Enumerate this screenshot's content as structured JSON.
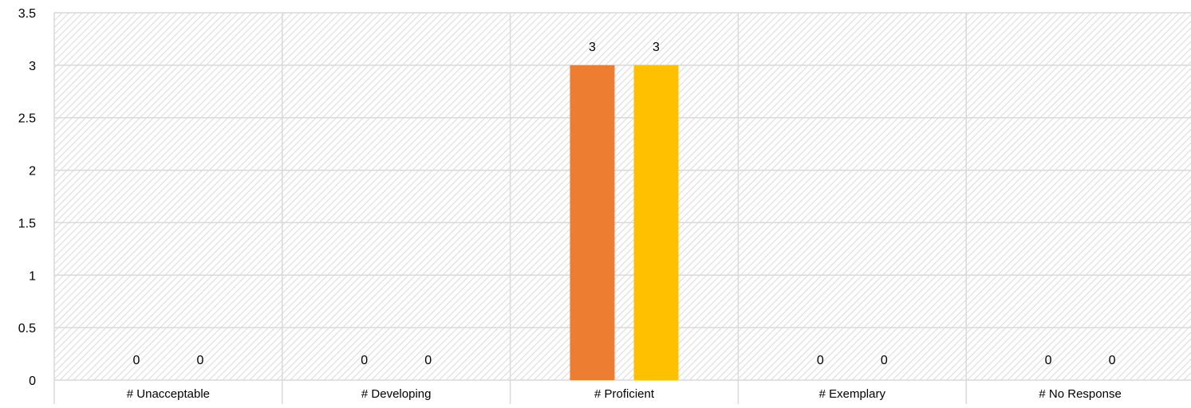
{
  "chart_data": {
    "type": "bar",
    "title": "",
    "xlabel": "",
    "ylabel": "",
    "categories": [
      "# Unacceptable",
      "# Developing",
      "# Proficient",
      "# Exemplary",
      "# No Response"
    ],
    "series": [
      {
        "color": "#ED7D31",
        "values": [
          0,
          0,
          3,
          0,
          0
        ]
      },
      {
        "color": "#FFC000",
        "values": [
          0,
          0,
          3,
          0,
          0
        ]
      }
    ],
    "ylim": [
      0,
      3.5
    ],
    "yticks": [
      "0",
      "0.5",
      "1",
      "1.5",
      "2",
      "2.5",
      "3",
      "3.5"
    ],
    "grid": true,
    "legend": "none",
    "data_labels": true,
    "plot_fill": "diagonal-hatch"
  }
}
